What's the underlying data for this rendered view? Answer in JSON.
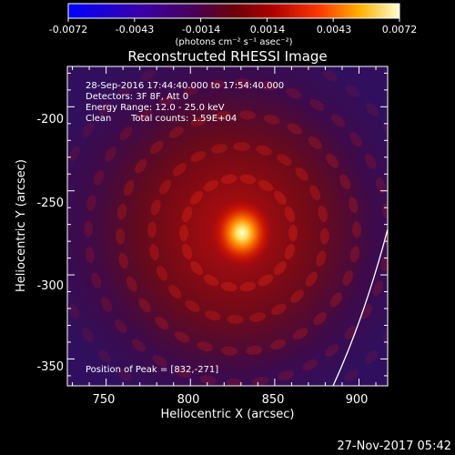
{
  "colorbar": {
    "ticks": [
      "-0.0072",
      "-0.0043",
      "-0.0014",
      "0.0014",
      "0.0043",
      "0.0072"
    ],
    "units": "(photons cm⁻² s⁻¹ asec⁻²)",
    "range": [
      -0.0072,
      0.0072
    ]
  },
  "title": "Reconstructed RHESSI Image",
  "info": {
    "time_range": "28-Sep-2016 17:44:40.000 to 17:54:40.000",
    "detectors": "Detectors: 3F 8F, Att 0",
    "energy": "Energy Range: 12.0 - 25.0 keV",
    "method": "Clean",
    "counts": "Total counts: 1.59E+04"
  },
  "peak_label": "Position of Peak = [832,-271]",
  "peak": {
    "x": 832,
    "y": -271
  },
  "axes": {
    "xlabel": "Heliocentric X (arcsec)",
    "ylabel": "Heliocentric Y (arcsec)",
    "xlim": [
      727,
      917
    ],
    "ylim": [
      -366,
      -176
    ],
    "xticks": [
      "750",
      "800",
      "850",
      "900"
    ],
    "yticks": [
      "-200",
      "-250",
      "-300",
      "-350"
    ]
  },
  "limb_arc": {
    "x": [
      886,
      917
    ],
    "y": [
      -366,
      -298
    ]
  },
  "timestamp": "27-Nov-2017 05:42",
  "colors": {
    "background": "#000000",
    "text": "#ffffff"
  }
}
